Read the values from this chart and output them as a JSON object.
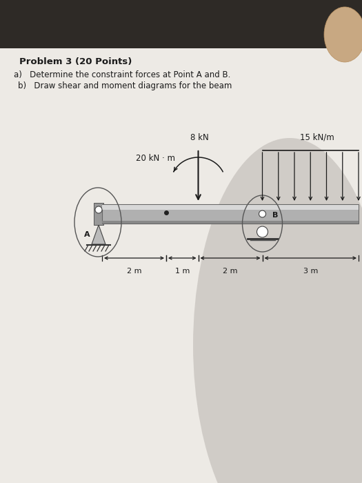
{
  "bg_outer": "#3a3530",
  "bg_paper": "#e8e5e0",
  "bg_paper_lower": "#d0ccc7",
  "title": "Problem 3 (20 Points)",
  "line_a": "a)   Determine the constraint forces at Point A and B.",
  "line_b": "b)   Draw shear and moment diagrams for the beam",
  "text_color": "#1a1a1a",
  "arrow_color": "#1a1a1a",
  "beam_color_main": "#a8a8a8",
  "beam_color_top": "#d0d0d0",
  "beam_color_bottom": "#888888",
  "beam_edge": "#555555",
  "dim_labels": [
    "2 m",
    "1 m",
    "2 m",
    "3 m"
  ],
  "load_8kN": "8 kN",
  "moment_label": "20 kN · m",
  "dist_label": "15 kN/m",
  "label_A": "A",
  "label_B": "B"
}
